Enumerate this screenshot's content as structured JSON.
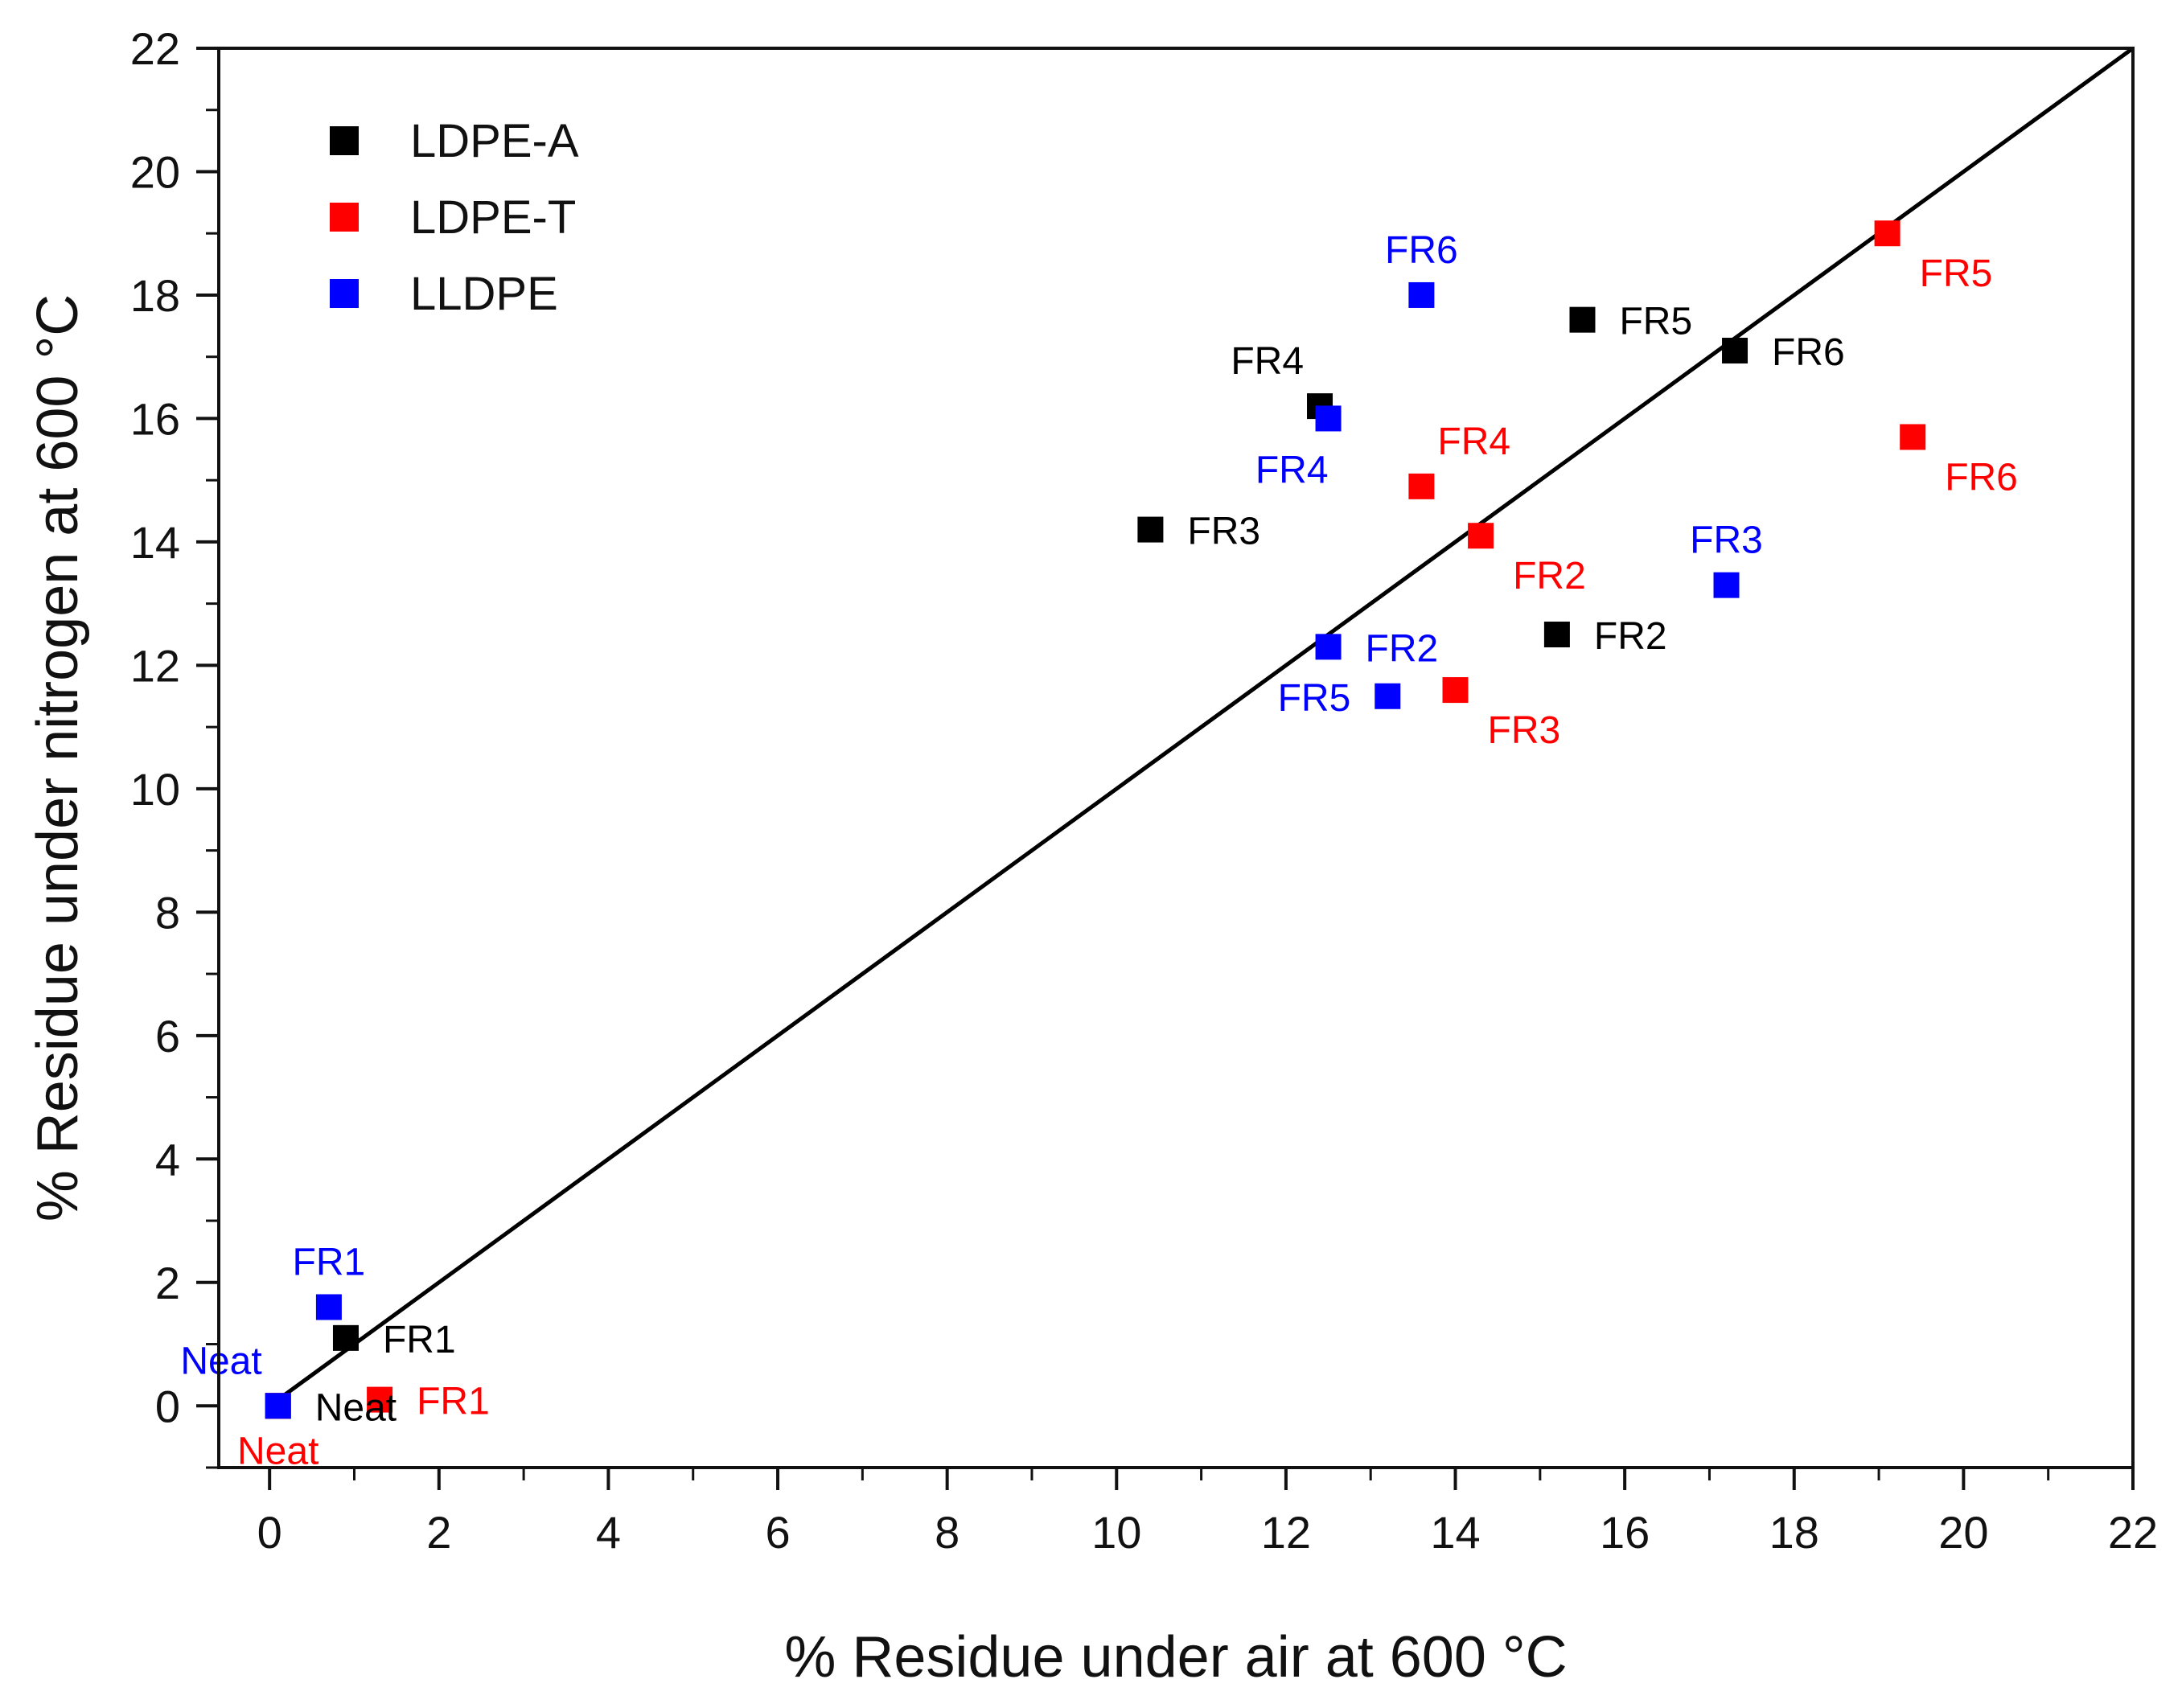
{
  "chart_data": {
    "type": "scatter",
    "xlabel": "% Residue under air at 600 °C",
    "ylabel": "% Residue under nitrogen at 600 °C",
    "xlim": [
      -0.6,
      22
    ],
    "ylim": [
      -1,
      22
    ],
    "xticks": [
      "0",
      "2",
      "4",
      "6",
      "8",
      "10",
      "12",
      "14",
      "16",
      "18",
      "20",
      "22"
    ],
    "yticks": [
      "0",
      "2",
      "4",
      "6",
      "8",
      "10",
      "12",
      "14",
      "16",
      "18",
      "20",
      "22"
    ],
    "reference_line": {
      "from": [
        0,
        0
      ],
      "to": [
        22,
        22
      ],
      "color": "#000000"
    },
    "legend_position": "top-left",
    "series": [
      {
        "name": "LDPE-A",
        "color": "#000000",
        "points": [
          {
            "label": "Neat",
            "x": 0.1,
            "y": 0.0,
            "label_pos": "right"
          },
          {
            "label": "FR1",
            "x": 0.9,
            "y": 1.1,
            "label_pos": "right"
          },
          {
            "label": "FR2",
            "x": 15.2,
            "y": 12.5,
            "label_pos": "right"
          },
          {
            "label": "FR3",
            "x": 10.4,
            "y": 14.2,
            "label_pos": "right"
          },
          {
            "label": "FR4",
            "x": 12.4,
            "y": 16.2,
            "label_pos": "above-left"
          },
          {
            "label": "FR5",
            "x": 15.5,
            "y": 17.6,
            "label_pos": "right"
          },
          {
            "label": "FR6",
            "x": 17.3,
            "y": 17.1,
            "label_pos": "right"
          }
        ]
      },
      {
        "name": "LDPE-T",
        "color": "#ff0000",
        "points": [
          {
            "label": "Neat",
            "x": 0.1,
            "y": 0.0,
            "label_pos": "below"
          },
          {
            "label": "FR1",
            "x": 1.3,
            "y": 0.1,
            "label_pos": "right"
          },
          {
            "label": "FR2",
            "x": 14.3,
            "y": 14.1,
            "label_pos": "below-right"
          },
          {
            "label": "FR3",
            "x": 14.0,
            "y": 11.6,
            "label_pos": "below-right"
          },
          {
            "label": "FR4",
            "x": 13.6,
            "y": 14.9,
            "label_pos": "above-right"
          },
          {
            "label": "FR5",
            "x": 19.1,
            "y": 19.0,
            "label_pos": "below-right"
          },
          {
            "label": "FR6",
            "x": 19.4,
            "y": 15.7,
            "label_pos": "below-right"
          }
        ]
      },
      {
        "name": "LLDPE",
        "color": "#0000ff",
        "points": [
          {
            "label": "Neat",
            "x": 0.1,
            "y": 0.0,
            "label_pos": "above-left"
          },
          {
            "label": "FR1",
            "x": 0.7,
            "y": 1.6,
            "label_pos": "above"
          },
          {
            "label": "FR2",
            "x": 12.5,
            "y": 12.3,
            "label_pos": "right"
          },
          {
            "label": "FR3",
            "x": 17.2,
            "y": 13.3,
            "label_pos": "above"
          },
          {
            "label": "FR4",
            "x": 12.5,
            "y": 16.0,
            "label_pos": "below-left"
          },
          {
            "label": "FR5",
            "x": 13.2,
            "y": 11.5,
            "label_pos": "left"
          },
          {
            "label": "FR6",
            "x": 13.6,
            "y": 18.0,
            "label_pos": "above"
          }
        ]
      }
    ]
  }
}
